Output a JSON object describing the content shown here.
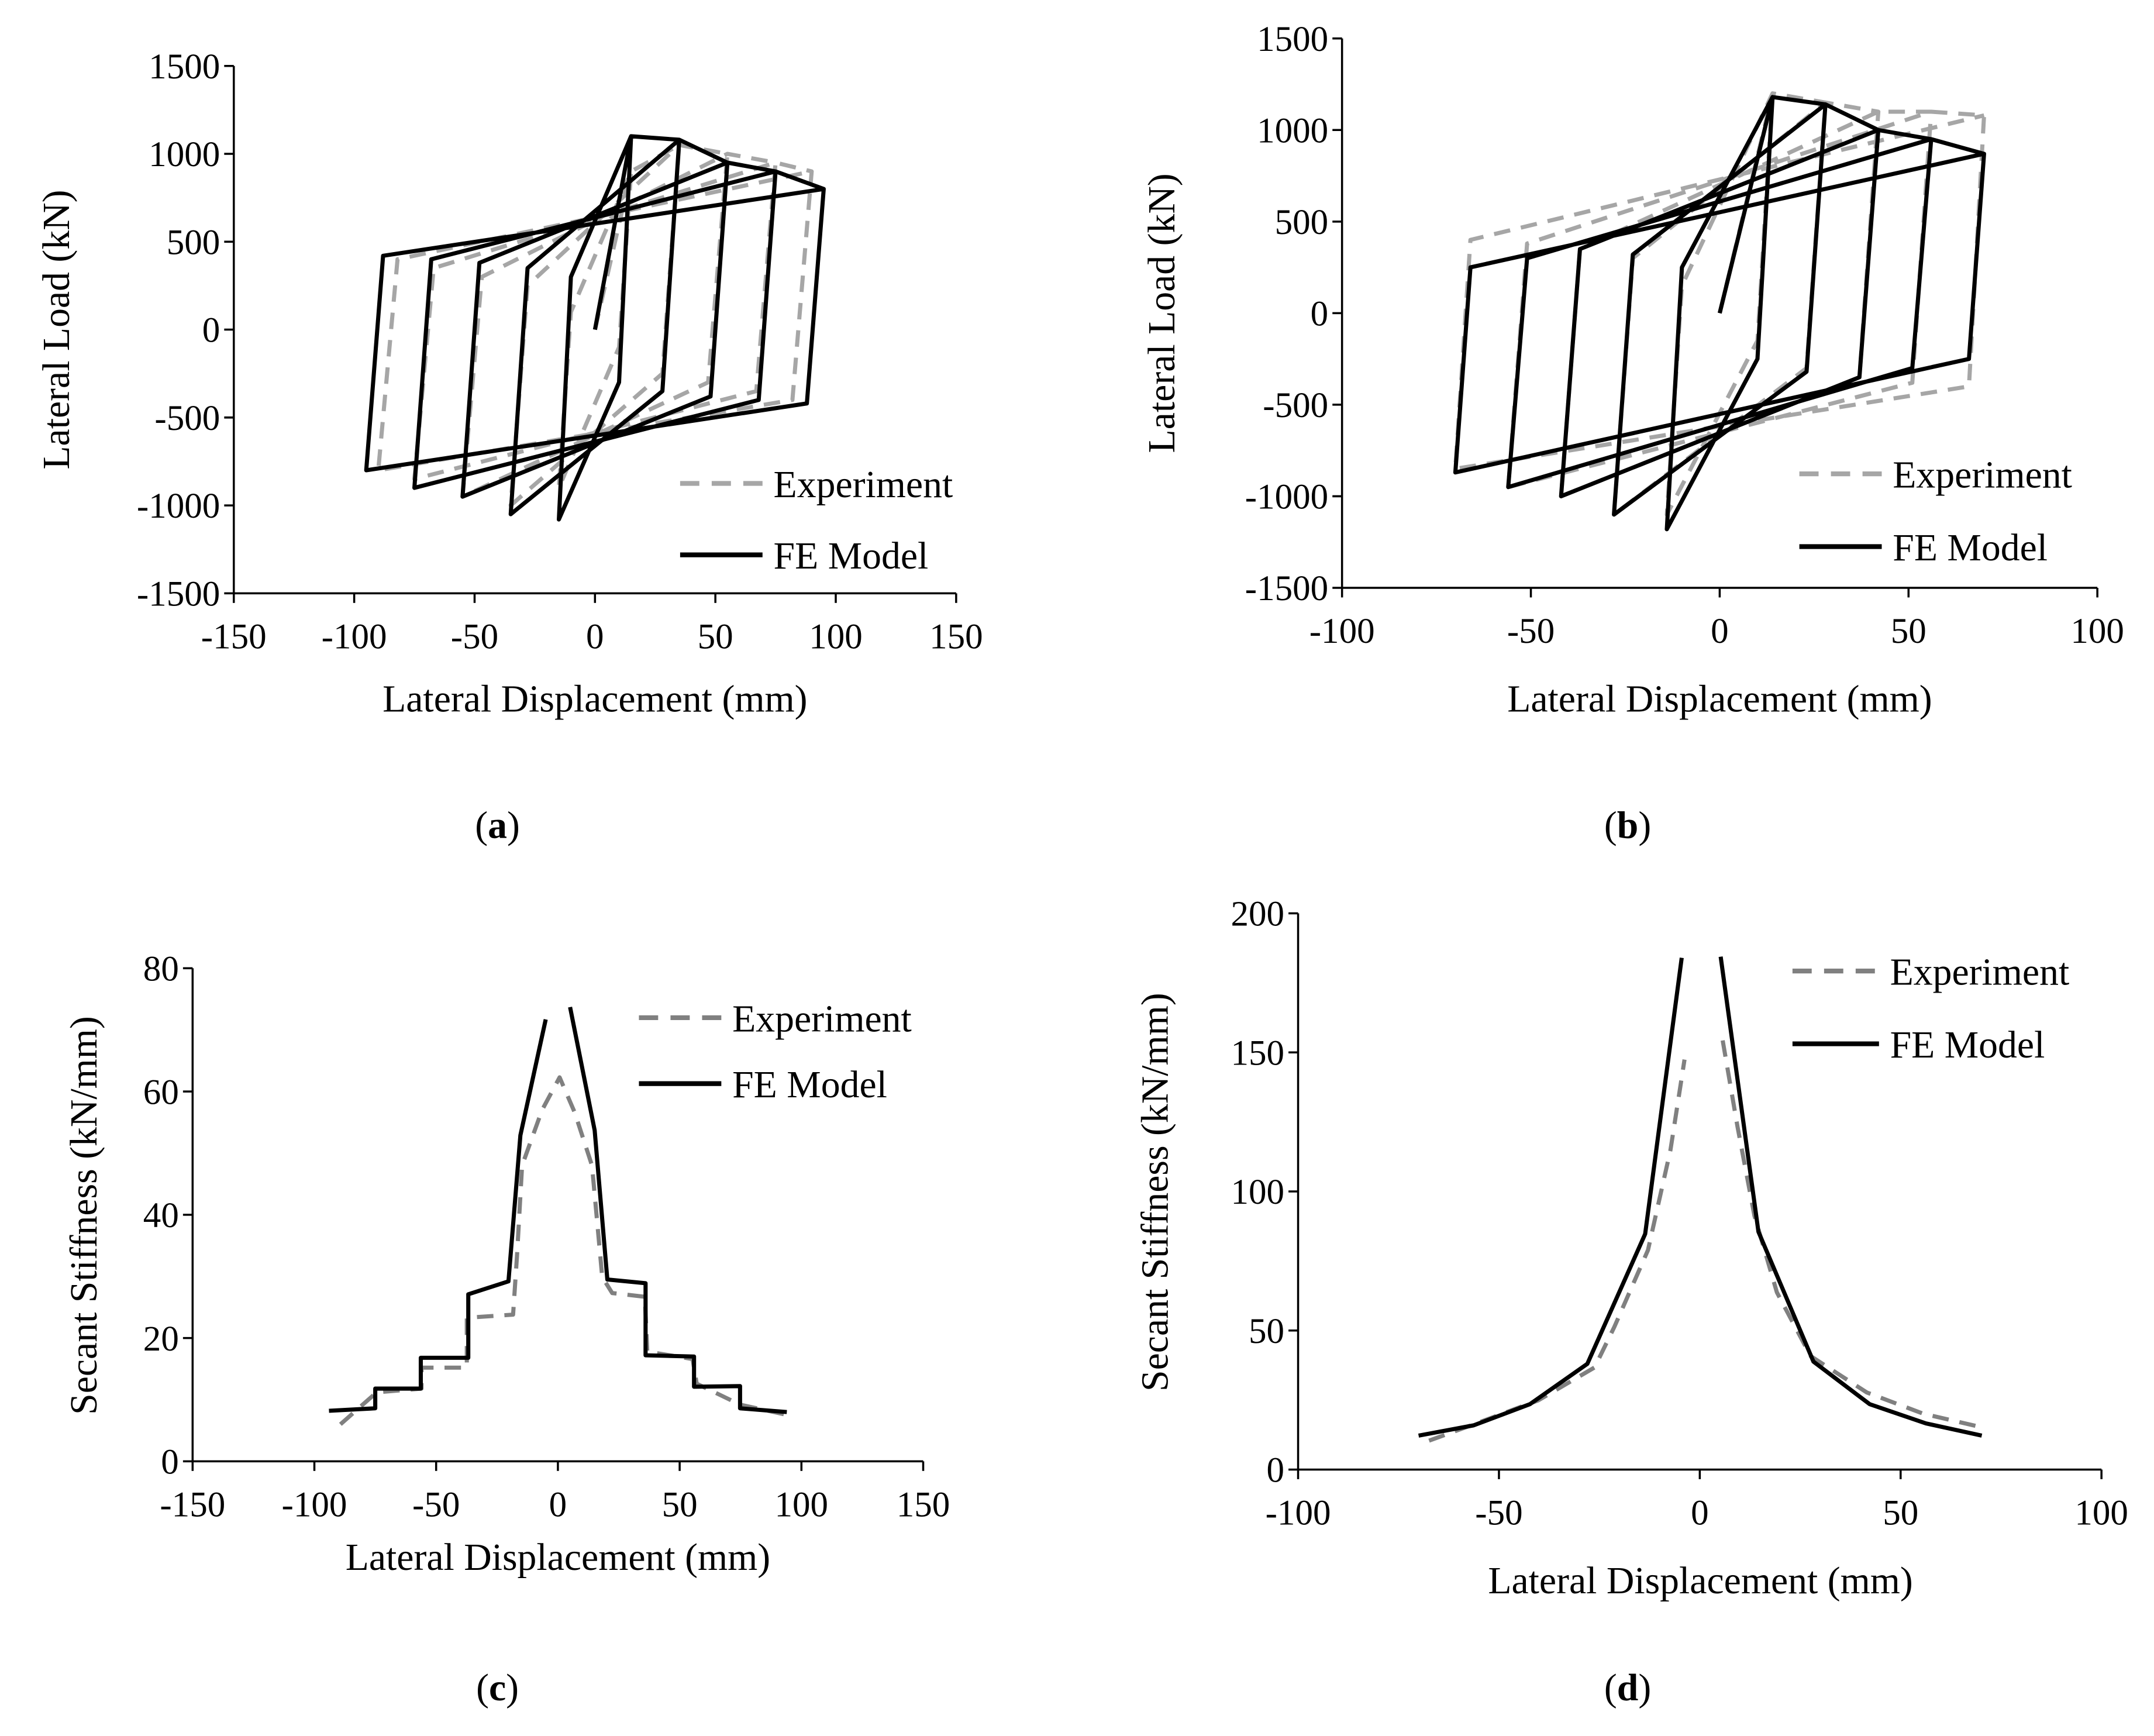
{
  "colors": {
    "experiment": "#a6a6a6",
    "experiment_stiffness": "#808080",
    "fe_model": "#000000"
  },
  "chart_data": [
    {
      "panel": "(a)",
      "caption_letter": "a",
      "type": "line",
      "xlabel": "Lateral Displacement (mm)",
      "ylabel": "Lateral Load (kN)",
      "xlim": [
        -150,
        150
      ],
      "ylim": [
        -1500,
        1500
      ],
      "xticks": [
        -150,
        -100,
        -50,
        0,
        50,
        100,
        150
      ],
      "yticks": [
        -1500,
        -1000,
        -500,
        0,
        500,
        1000,
        1500
      ],
      "grid": false,
      "legend_placement": "bottom-right",
      "series": [
        {
          "name": "Experiment",
          "style": "dashed",
          "points": [
            [
              0,
              0
            ],
            [
              15,
              900
            ],
            [
              10,
              -100
            ],
            [
              -15,
              -900
            ],
            [
              -10,
              100
            ],
            [
              15,
              900
            ],
            [
              35,
              1050
            ],
            [
              28,
              -250
            ],
            [
              -35,
              -1000
            ],
            [
              -28,
              250
            ],
            [
              35,
              1050
            ],
            [
              55,
              1000
            ],
            [
              47,
              -300
            ],
            [
              -55,
              -950
            ],
            [
              -47,
              300
            ],
            [
              55,
              1000
            ],
            [
              75,
              950
            ],
            [
              67,
              -350
            ],
            [
              -75,
              -850
            ],
            [
              -67,
              350
            ],
            [
              75,
              950
            ],
            [
              90,
              900
            ],
            [
              82,
              -400
            ],
            [
              -90,
              -800
            ],
            [
              -82,
              400
            ],
            [
              90,
              900
            ]
          ]
        },
        {
          "name": "FE Model",
          "style": "solid",
          "points": [
            [
              0,
              0
            ],
            [
              15,
              1100
            ],
            [
              10,
              -300
            ],
            [
              -15,
              -1080
            ],
            [
              -10,
              300
            ],
            [
              15,
              1100
            ],
            [
              35,
              1080
            ],
            [
              28,
              -350
            ],
            [
              -35,
              -1050
            ],
            [
              -28,
              350
            ],
            [
              35,
              1080
            ],
            [
              55,
              950
            ],
            [
              48,
              -380
            ],
            [
              -55,
              -950
            ],
            [
              -48,
              380
            ],
            [
              55,
              950
            ],
            [
              75,
              900
            ],
            [
              68,
              -400
            ],
            [
              -75,
              -900
            ],
            [
              -68,
              400
            ],
            [
              75,
              900
            ],
            [
              95,
              800
            ],
            [
              88,
              -420
            ],
            [
              -95,
              -800
            ],
            [
              -88,
              420
            ],
            [
              95,
              800
            ]
          ]
        }
      ]
    },
    {
      "panel": "(b)",
      "caption_letter": "b",
      "type": "line",
      "xlabel": "Lateral Displacement (mm)",
      "ylabel": "Lateral Load (kN)",
      "xlim": [
        -100,
        100
      ],
      "ylim": [
        -1500,
        1500
      ],
      "xticks": [
        -100,
        -50,
        0,
        50,
        100
      ],
      "yticks": [
        -1500,
        -1000,
        -500,
        0,
        500,
        1000,
        1500
      ],
      "grid": false,
      "legend_placement": "bottom-right",
      "series": [
        {
          "name": "Experiment",
          "style": "dashed",
          "points": [
            [
              0,
              0
            ],
            [
              14,
              1200
            ],
            [
              10,
              -150
            ],
            [
              -14,
              -1100
            ],
            [
              -10,
              150
            ],
            [
              14,
              1200
            ],
            [
              28,
              1150
            ],
            [
              23,
              -300
            ],
            [
              -28,
              -1100
            ],
            [
              -23,
              300
            ],
            [
              28,
              1150
            ],
            [
              42,
              1100
            ],
            [
              37,
              -350
            ],
            [
              -42,
              -1000
            ],
            [
              -37,
              350
            ],
            [
              42,
              1100
            ],
            [
              56,
              1100
            ],
            [
              51,
              -380
            ],
            [
              -56,
              -950
            ],
            [
              -51,
              380
            ],
            [
              56,
              1100
            ],
            [
              70,
              1080
            ],
            [
              66,
              -400
            ],
            [
              -70,
              -850
            ],
            [
              -66,
              400
            ],
            [
              70,
              1080
            ]
          ]
        },
        {
          "name": "FE Model",
          "style": "solid",
          "points": [
            [
              0,
              0
            ],
            [
              14,
              1180
            ],
            [
              10,
              -250
            ],
            [
              -14,
              -1180
            ],
            [
              -10,
              250
            ],
            [
              14,
              1180
            ],
            [
              28,
              1140
            ],
            [
              23,
              -320
            ],
            [
              -28,
              -1100
            ],
            [
              -23,
              320
            ],
            [
              28,
              1140
            ],
            [
              42,
              1000
            ],
            [
              37,
              -350
            ],
            [
              -42,
              -1000
            ],
            [
              -37,
              350
            ],
            [
              42,
              1000
            ],
            [
              56,
              950
            ],
            [
              51,
              -300
            ],
            [
              -56,
              -950
            ],
            [
              -51,
              300
            ],
            [
              56,
              950
            ],
            [
              70,
              870
            ],
            [
              66,
              -250
            ],
            [
              -70,
              -870
            ],
            [
              -66,
              250
            ],
            [
              70,
              870
            ]
          ]
        }
      ]
    },
    {
      "panel": "(c)",
      "caption_letter": "c",
      "type": "line",
      "xlabel": "Lateral Displacement (mm)",
      "ylabel": "Secant Stiffness (kN/mm)",
      "xlim": [
        -150,
        150
      ],
      "ylim": [
        0,
        80
      ],
      "xticks": [
        -150,
        -100,
        -50,
        0,
        50,
        100,
        150
      ],
      "yticks": [
        0,
        20,
        40,
        60,
        80
      ],
      "grid": false,
      "legend_placement": "top-right",
      "series": [
        {
          "name": "Experiment",
          "style": "dashed",
          "segments": [
            [
              [
                -89.3,
                6.0
              ],
              [
                -74.4,
                11.2
              ],
              [
                -56,
                11.8
              ],
              [
                -56,
                15.2
              ],
              [
                -37.4,
                15.2
              ],
              [
                -37.4,
                23.3
              ],
              [
                -18.4,
                23.8
              ],
              [
                -16.8,
                33.3
              ],
              [
                -14.7,
                48
              ],
              [
                -6.5,
                57
              ],
              [
                0.7,
                62.3
              ],
              [
                6.9,
                56.6
              ],
              [
                14,
                48
              ],
              [
                18.2,
                29.9
              ],
              [
                22.3,
                27.3
              ],
              [
                35.7,
                26.7
              ],
              [
                36.7,
                17.8
              ],
              [
                55.3,
                16.6
              ],
              [
                57,
                12.6
              ],
              [
                74.8,
                9.2
              ],
              [
                94.4,
                7.5
              ]
            ]
          ]
        },
        {
          "name": "FE Model",
          "style": "solid",
          "segments": [
            [
              [
                -94,
                8.2
              ],
              [
                -75,
                8.6
              ],
              [
                -75,
                11.8
              ],
              [
                -56.3,
                11.8
              ],
              [
                -56.3,
                16.8
              ],
              [
                -36.8,
                16.8
              ],
              [
                -36.8,
                27.1
              ],
              [
                -20.3,
                29.2
              ],
              [
                -15.4,
                52.9
              ],
              [
                -5,
                71.7
              ]
            ],
            [
              [
                5,
                73.7
              ],
              [
                15.1,
                53.7
              ],
              [
                20.3,
                29.5
              ],
              [
                36,
                28.9
              ],
              [
                36,
                17.2
              ],
              [
                55.9,
                17
              ],
              [
                55.9,
                12.1
              ],
              [
                74.8,
                12.2
              ],
              [
                74.8,
                8.6
              ],
              [
                94,
                8.0
              ]
            ]
          ]
        }
      ]
    },
    {
      "panel": "(d)",
      "caption_letter": "d",
      "type": "line",
      "xlabel": "Lateral Displacement (mm)",
      "ylabel": "Secant Stiffness (kN/mm)",
      "xlim": [
        -100,
        100
      ],
      "ylim": [
        0,
        200
      ],
      "xticks": [
        -100,
        -50,
        0,
        50,
        100
      ],
      "yticks": [
        0,
        50,
        100,
        150,
        200
      ],
      "grid": false,
      "legend_placement": "top-right",
      "series": [
        {
          "name": "Experiment",
          "style": "dashed",
          "segments": [
            [
              [
                -67.4,
                10.4
              ],
              [
                -55.6,
                16.6
              ],
              [
                -40.2,
                24.9
              ],
              [
                -26.2,
                36.7
              ],
              [
                -21.3,
                51.2
              ],
              [
                -12.9,
                78.9
              ],
              [
                -7.3,
                114.9
              ],
              [
                -3.8,
                147.4
              ]
            ],
            [
              [
                5.7,
                154.3
              ],
              [
                9.4,
                123.2
              ],
              [
                13.6,
                91.3
              ],
              [
                19.2,
                63.7
              ],
              [
                27.6,
                40.8
              ],
              [
                41.6,
                27.7
              ],
              [
                55.6,
                20.1
              ],
              [
                70.2,
                15.2
              ]
            ]
          ]
        },
        {
          "name": "FE Model",
          "style": "solid",
          "segments": [
            [
              [
                -70,
                12.2
              ],
              [
                -56.3,
                15.9
              ],
              [
                -42.3,
                23.5
              ],
              [
                -28,
                38
              ],
              [
                -13.6,
                84.7
              ],
              [
                -4.5,
                184
              ]
            ],
            [
              [
                5.2,
                184.4
              ],
              [
                14.6,
                85.5
              ],
              [
                28.3,
                38.8
              ],
              [
                42.3,
                23.5
              ],
              [
                56.3,
                16.6
              ],
              [
                70.2,
                12.2
              ]
            ]
          ]
        }
      ]
    }
  ]
}
